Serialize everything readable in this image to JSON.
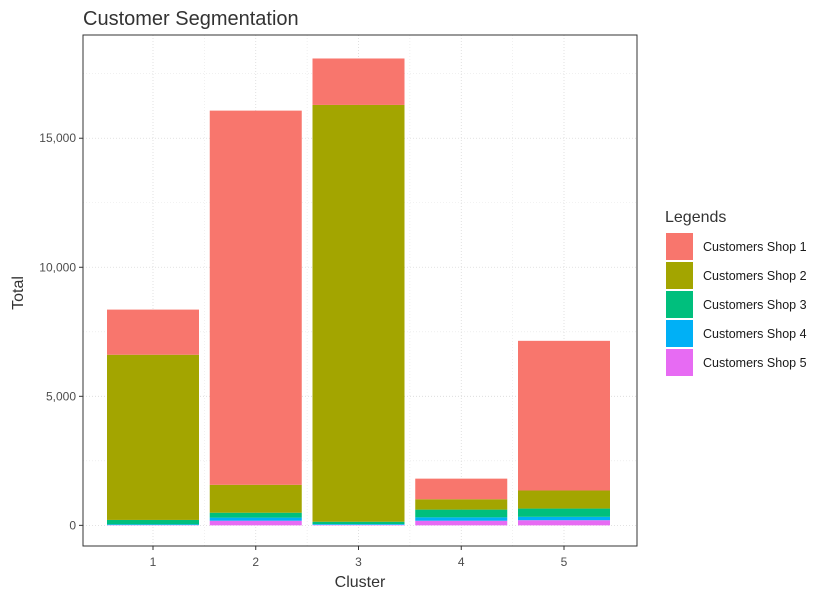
{
  "chart_data": {
    "type": "bar",
    "stacked": true,
    "title": "Customer Segmentation",
    "xlabel": "Cluster",
    "ylabel": "Total",
    "categories": [
      "1",
      "2",
      "3",
      "4",
      "5"
    ],
    "yticks": [
      0,
      5000,
      10000,
      15000
    ],
    "ytick_labels": [
      "0",
      "5,000",
      "10,000",
      "15,000"
    ],
    "ylim": [
      -800,
      19000
    ],
    "grid": true,
    "legend": {
      "title": "Legends",
      "position": "right"
    },
    "series": [
      {
        "name": "Customers Shop 5",
        "color": "#E76BF3",
        "values": [
          10,
          180,
          20,
          180,
          200
        ]
      },
      {
        "name": "Customers Shop 4",
        "color": "#00B0F6",
        "values": [
          30,
          120,
          30,
          130,
          130
        ]
      },
      {
        "name": "Customers Shop 3",
        "color": "#00BF7D",
        "values": [
          170,
          190,
          90,
          300,
          320
        ]
      },
      {
        "name": "Customers Shop 2",
        "color": "#A3A500",
        "values": [
          6400,
          1080,
          16150,
          400,
          700
        ]
      },
      {
        "name": "Customers Shop 1",
        "color": "#F8766D",
        "values": [
          1750,
          14500,
          1800,
          800,
          5800
        ]
      }
    ],
    "legend_order": [
      "Customers Shop 1",
      "Customers Shop 2",
      "Customers Shop 3",
      "Customers Shop 4",
      "Customers Shop 5"
    ]
  }
}
